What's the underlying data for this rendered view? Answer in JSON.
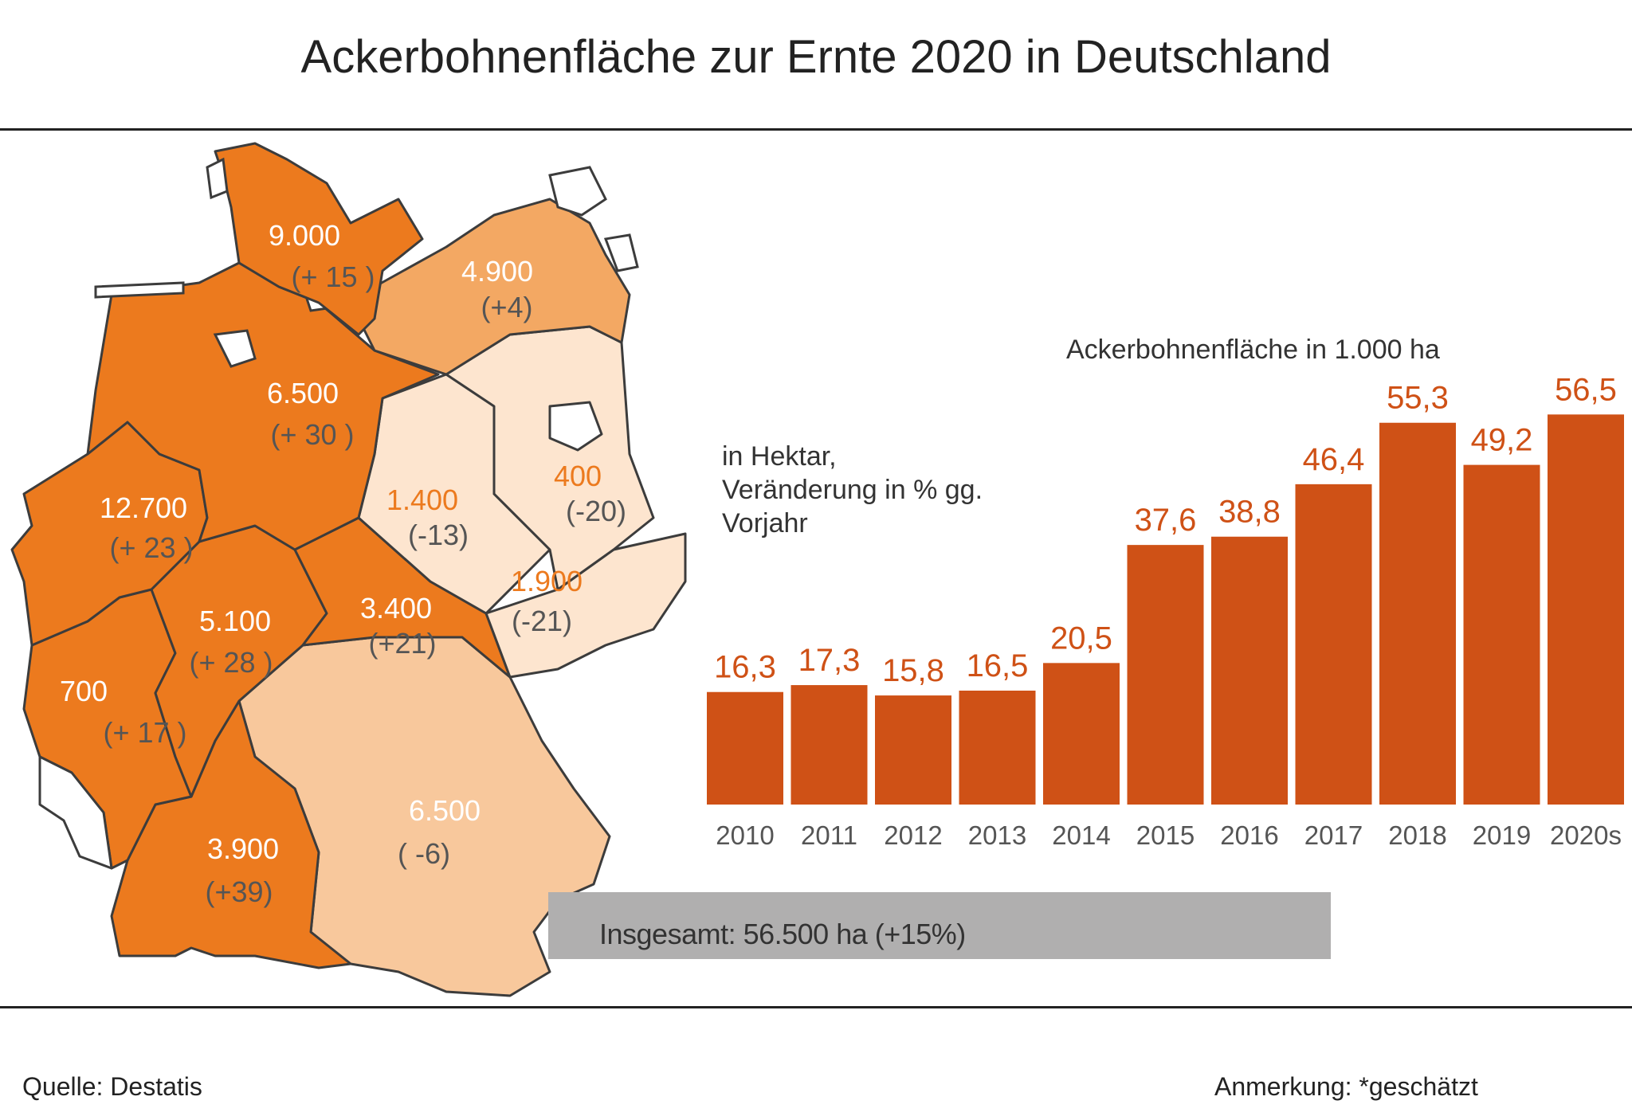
{
  "title": "Ackerbohnenfläche  zur Ernte 2020 in Deutschland",
  "colors": {
    "dark_orange": "#ec7a1e",
    "mid_orange": "#f3a863",
    "light_peach": "#f8c89c",
    "pale_peach": "#fde5cf",
    "bar": "#cf5116",
    "total_box": "#b0afaf",
    "orange_text": "#ec7a1e"
  },
  "map": {
    "regions": [
      {
        "id": "schleswig-holstein",
        "value": "9.000",
        "change": "(+ 15 )"
      },
      {
        "id": "mecklenburg-vorpommern",
        "value": "4.900",
        "change": "(+4)"
      },
      {
        "id": "niedersachsen",
        "value": "6.500",
        "change": "(+ 30 )"
      },
      {
        "id": "nordrhein-westfalen",
        "value": "12.700",
        "change": "(+ 23 )"
      },
      {
        "id": "sachsen-anhalt",
        "value": "1.400",
        "change": "(-13)"
      },
      {
        "id": "brandenburg",
        "value": "400",
        "change": "(-20)"
      },
      {
        "id": "sachsen",
        "value": "1.900",
        "change": "(-21)"
      },
      {
        "id": "thueringen",
        "value": "3.400",
        "change": "(+21)"
      },
      {
        "id": "hessen",
        "value": "5.100",
        "change": "(+ 28 )"
      },
      {
        "id": "rheinland-pfalz",
        "value": "700",
        "change": "(+ 17 )"
      },
      {
        "id": "baden-wuerttemberg",
        "value": "3.900",
        "change": "(+39)"
      },
      {
        "id": "bayern",
        "value": "6.500",
        "change": "( -6)"
      }
    ]
  },
  "notes": {
    "line1": "in Hektar,",
    "line2": "Veränderung in % gg.",
    "line3": "Vorjahr"
  },
  "chart_data": {
    "type": "bar",
    "title": "Ackerbohnenfläche in 1.000 ha",
    "categories": [
      "2010",
      "2011",
      "2012",
      "2013",
      "2014",
      "2015",
      "2016",
      "2017",
      "2018",
      "2019",
      "2020s"
    ],
    "values": [
      16.3,
      17.3,
      15.8,
      16.5,
      20.5,
      37.6,
      38.8,
      46.4,
      55.3,
      49.2,
      56.5
    ],
    "value_labels": [
      "16,3",
      "17,3",
      "15,8",
      "16,5",
      "20,5",
      "37,6",
      "38,8",
      "46,4",
      "55,3",
      "49,2",
      "56,5"
    ],
    "ylim": [
      0,
      60
    ],
    "grid": false,
    "xlabel": "",
    "ylabel": ""
  },
  "total": "Insgesamt: 56.500 ha (+15%)",
  "footer": {
    "source": "Quelle:  Destatis",
    "note": "Anmerkung: *geschätzt"
  }
}
